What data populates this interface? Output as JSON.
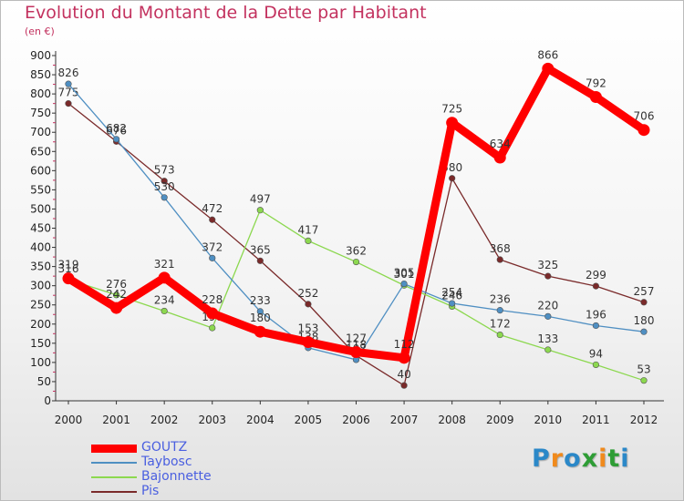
{
  "chart_data": {
    "type": "line",
    "title": "Evolution du Montant de la Dette par Habitant",
    "unit_label": "(en €)",
    "xlabel": "",
    "ylabel": "",
    "categories": [
      "2000",
      "2001",
      "2002",
      "2003",
      "2004",
      "2005",
      "2006",
      "2007",
      "2008",
      "2009",
      "2010",
      "2011",
      "2012"
    ],
    "ylim": [
      0,
      900
    ],
    "yticks": [
      0,
      50,
      100,
      150,
      200,
      250,
      300,
      350,
      400,
      450,
      500,
      550,
      600,
      650,
      700,
      750,
      800,
      850,
      900
    ],
    "grid": false,
    "legend_position": "bottom-left",
    "series": [
      {
        "name": "GOUTZ",
        "color": "#ff0000",
        "values": [
          319,
          242,
          321,
          228,
          180,
          153,
          127,
          112,
          725,
          634,
          866,
          792,
          706
        ]
      },
      {
        "name": "Taybosc",
        "color": "#4f8fc2",
        "values": [
          826,
          682,
          530,
          372,
          233,
          138,
          107,
          305,
          254,
          236,
          220,
          196,
          180
        ]
      },
      {
        "name": "Bajonnette",
        "color": "#8cd84f",
        "values": [
          316,
          276,
          234,
          190,
          497,
          417,
          362,
          301,
          246,
          172,
          133,
          94,
          53
        ]
      },
      {
        "name": "Pis",
        "color": "#7a2a2a",
        "values": [
          775,
          676,
          573,
          472,
          365,
          252,
          118,
          40,
          580,
          368,
          325,
          299,
          257
        ]
      }
    ]
  },
  "brand": {
    "letters": [
      {
        "ch": "P",
        "color": "#2b88c8"
      },
      {
        "ch": "r",
        "color": "#f08a1c"
      },
      {
        "ch": "o",
        "color": "#2b88c8"
      },
      {
        "ch": "x",
        "color": "#2e9d35"
      },
      {
        "ch": "i",
        "color": "#f08a1c"
      },
      {
        "ch": "t",
        "color": "#2e9d35"
      },
      {
        "ch": "i",
        "color": "#2b88c8"
      }
    ]
  }
}
